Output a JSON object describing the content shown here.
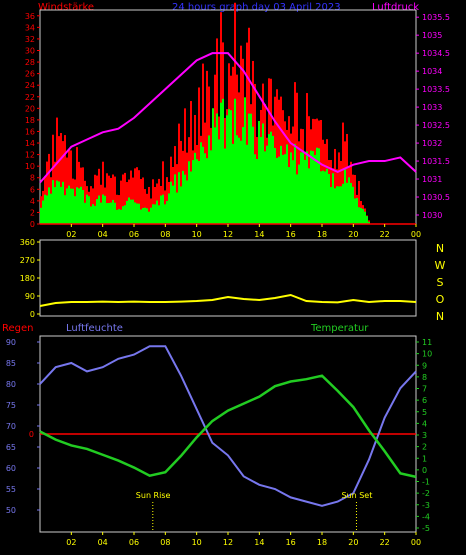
{
  "header": {
    "left_label": "Windstärke",
    "title": "24 hours graph day  03 April 2023",
    "right_label": "Luftdruck"
  },
  "colors": {
    "wind_red": "#ff0000",
    "wind_green": "#00ff00",
    "pressure": "#ff00ff",
    "direction": "#ffff00",
    "humidity": "#7777ee",
    "temperature": "#22cc22",
    "rain": "#ff0000",
    "axis_yellow": "#ffff00",
    "title_blue": "#3333ff"
  },
  "bottom": {
    "rain_label": "Regen",
    "humidity_label": "Luftfeuchte",
    "temperature_label": "Temperatur",
    "sunrise_label": "Sun Rise",
    "sunset_label": "Sun Set"
  },
  "chart_data": [
    {
      "type": "bar",
      "id": "wind",
      "title": "Windstärke",
      "y_ticks": [
        "0",
        "2",
        "4",
        "6",
        "8",
        "10",
        "12",
        "14",
        "16",
        "18",
        "20",
        "22",
        "24",
        "26",
        "28",
        "30",
        "32",
        "34",
        "36"
      ],
      "ylim": [
        0,
        37
      ],
      "x_ticks": [
        "02",
        "04",
        "06",
        "08",
        "10",
        "12",
        "14",
        "16",
        "18",
        "20",
        "22",
        "00"
      ],
      "xlim_hours": [
        0,
        24
      ],
      "series": [
        {
          "name": "gust",
          "hours": [
            0,
            0.5,
            1,
            1.5,
            2,
            2.5,
            3,
            3.5,
            4,
            4.5,
            5,
            5.5,
            6,
            6.5,
            7,
            7.5,
            8,
            8.5,
            9,
            9.5,
            10,
            10.5,
            11,
            11.5,
            12,
            12.5,
            13,
            13.5,
            14,
            14.5,
            15,
            15.5,
            16,
            16.5,
            17,
            17.5,
            18,
            18.5,
            19,
            19.5,
            20,
            20.5,
            21,
            21.5,
            22,
            22.5,
            23,
            23.5,
            24
          ],
          "values": [
            8,
            12,
            16,
            14,
            10,
            12,
            8,
            9,
            10,
            8,
            7,
            8,
            9,
            7,
            6,
            8,
            10,
            14,
            17,
            18,
            22,
            25,
            28,
            31,
            30,
            33,
            32,
            26,
            24,
            23,
            22,
            22,
            21,
            20,
            19,
            20,
            18,
            14,
            16,
            15,
            9,
            5,
            0,
            0,
            0,
            0,
            0,
            0,
            0
          ]
        },
        {
          "name": "mean",
          "hours": [
            0,
            0.5,
            1,
            1.5,
            2,
            2.5,
            3,
            3.5,
            4,
            4.5,
            5,
            5.5,
            6,
            6.5,
            7,
            7.5,
            8,
            8.5,
            9,
            9.5,
            10,
            10.5,
            11,
            11.5,
            12,
            12.5,
            13,
            13.5,
            14,
            14.5,
            15,
            15.5,
            16,
            16.5,
            17,
            17.5,
            18,
            18.5,
            19,
            19.5,
            20,
            20.5,
            21,
            21.5,
            22,
            22.5,
            23,
            23.5,
            24
          ],
          "values": [
            4,
            6,
            8,
            7,
            5,
            6,
            4,
            4,
            5,
            4,
            3,
            4,
            4,
            3,
            3,
            4,
            5,
            7,
            9,
            10,
            13,
            15,
            17,
            19,
            18,
            20,
            19,
            16,
            15,
            14,
            13,
            13,
            12,
            12,
            11,
            12,
            10,
            8,
            9,
            8,
            5,
            3,
            0,
            0,
            0,
            0,
            0,
            0,
            0
          ]
        }
      ]
    },
    {
      "type": "line",
      "id": "pressure",
      "title": "Luftdruck",
      "y_ticks": [
        "1030",
        "1030.5",
        "1031",
        "1031.5",
        "1032",
        "1032.5",
        "1033",
        "1033.5",
        "1034",
        "1034.5",
        "1035",
        "1035.5"
      ],
      "ylim": [
        1029.75,
        1035.7
      ],
      "x_hours": [
        0,
        1,
        2,
        3,
        4,
        5,
        6,
        7,
        8,
        9,
        10,
        11,
        12,
        13,
        14,
        15,
        16,
        17,
        18,
        19,
        20,
        21,
        22,
        23,
        24
      ],
      "values": [
        1030.9,
        1031.4,
        1031.9,
        1032.1,
        1032.3,
        1032.4,
        1032.7,
        1033.1,
        1033.5,
        1033.9,
        1034.3,
        1034.5,
        1034.5,
        1034.0,
        1033.3,
        1032.6,
        1032.0,
        1031.7,
        1031.4,
        1031.2,
        1031.4,
        1031.5,
        1031.5,
        1031.6,
        1031.2
      ]
    },
    {
      "type": "line",
      "id": "direction",
      "y_ticks": [
        "0",
        "90",
        "180",
        "270",
        "360"
      ],
      "ylim": [
        0,
        360
      ],
      "compass": [
        "N",
        "W",
        "S",
        "O",
        "N"
      ],
      "x_hours": [
        0,
        1,
        2,
        3,
        4,
        5,
        6,
        7,
        8,
        9,
        10,
        11,
        12,
        13,
        14,
        15,
        16,
        17,
        18,
        19,
        20,
        21,
        22,
        23,
        24
      ],
      "values": [
        40,
        55,
        60,
        60,
        62,
        60,
        62,
        60,
        60,
        62,
        65,
        70,
        85,
        75,
        70,
        80,
        95,
        65,
        60,
        58,
        70,
        60,
        65,
        65,
        60
      ]
    },
    {
      "type": "line",
      "id": "climate",
      "x_ticks": [
        "02",
        "04",
        "06",
        "08",
        "10",
        "12",
        "14",
        "16",
        "18",
        "20",
        "22",
        "00"
      ],
      "humidity_ticks": [
        "50",
        "55",
        "60",
        "65",
        "70",
        "75",
        "80",
        "85",
        "90"
      ],
      "temperature_ticks": [
        "-5",
        "-4",
        "-3",
        "-2",
        "-1",
        "0",
        "1",
        "2",
        "3",
        "4",
        "5",
        "6",
        "7",
        "8",
        "9",
        "10",
        "11"
      ],
      "rain_ticks": [
        "0"
      ],
      "series": [
        {
          "name": "Luftfeuchte",
          "x_hours": [
            0,
            1,
            2,
            3,
            4,
            5,
            6,
            7,
            8,
            9,
            10,
            11,
            12,
            13,
            14,
            15,
            16,
            17,
            18,
            19,
            20,
            21,
            22,
            23,
            24
          ],
          "values": [
            80,
            84,
            85,
            83,
            84,
            86,
            87,
            89,
            89,
            82,
            74,
            66,
            63,
            58,
            56,
            55,
            53,
            52,
            51,
            52,
            54,
            62,
            72,
            79,
            83
          ]
        },
        {
          "name": "Temperatur",
          "x_hours": [
            0,
            1,
            2,
            3,
            4,
            5,
            6,
            7,
            8,
            9,
            10,
            11,
            12,
            13,
            14,
            15,
            16,
            17,
            18,
            19,
            20,
            21,
            22,
            23,
            24
          ],
          "values": [
            3.3,
            2.6,
            2.1,
            1.8,
            1.3,
            0.8,
            0.2,
            -0.5,
            -0.2,
            1.2,
            2.8,
            4.2,
            5.1,
            5.7,
            6.3,
            7.2,
            7.6,
            7.8,
            8.1,
            6.8,
            5.4,
            3.4,
            1.6,
            -0.3,
            -0.6
          ]
        },
        {
          "name": "Regen",
          "x_hours": [
            0,
            24
          ],
          "values": [
            0,
            0
          ]
        }
      ],
      "sunrise_hour": 7.2,
      "sunset_hour": 20.2
    }
  ]
}
